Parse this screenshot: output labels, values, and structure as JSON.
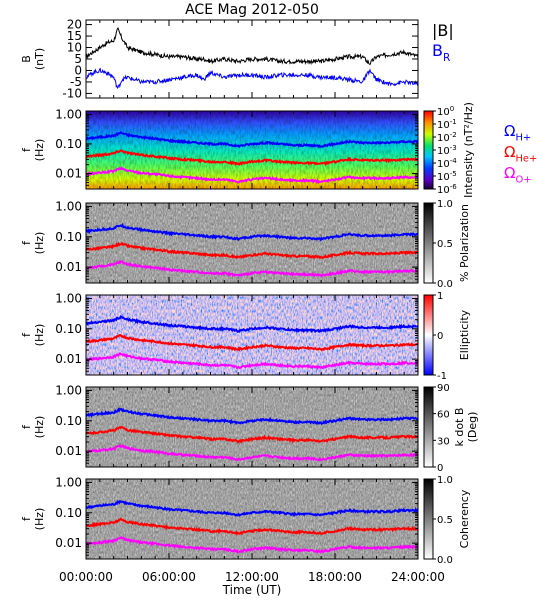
{
  "title": "ACE Mag 2012-050",
  "time_axis": {
    "ticks": [
      "00:00:00",
      "06:00:00",
      "12:00:00",
      "18:00:00",
      "24:00:00"
    ],
    "tick_hours": [
      0,
      6,
      12,
      18,
      24
    ],
    "minor_tick_hours": [
      1,
      2,
      3,
      4,
      5,
      7,
      8,
      9,
      10,
      11,
      13,
      14,
      15,
      16,
      17,
      19,
      20,
      21,
      22,
      23
    ],
    "label": "Time (UT)",
    "range": [
      0,
      24
    ]
  },
  "colors": {
    "b_total": "#000000",
    "b_r": "#0000ff",
    "gyro_h": "#0000ff",
    "gyro_he": "#ff0000",
    "gyro_o": "#ff00ff"
  },
  "panel_b": {
    "ylabel_top": "B",
    "ylabel_bottom": "(nT)",
    "ylim": [
      -12,
      22
    ],
    "ticks": [
      "20",
      "15",
      "10",
      "5",
      "0",
      "-5",
      "-10"
    ],
    "tick_values": [
      20,
      15,
      10,
      5,
      0,
      -5,
      -10
    ],
    "legend_total": "|B|",
    "legend_r_main": "B",
    "legend_r_sub": "R"
  },
  "freq_axis": {
    "ylabel_top": "f",
    "ylabel_bottom": "(Hz)",
    "log_range": [
      0.003,
      1.3
    ],
    "ticks": [
      "1.00",
      "0.10",
      "0.01"
    ],
    "tick_values": [
      1.0,
      0.1,
      0.01
    ]
  },
  "gyro_legend": {
    "h_main": "Ω",
    "h_sub": "H+",
    "he_main": "Ω",
    "he_sub": "He+",
    "o_main": "Ω",
    "o_sub": "O+"
  },
  "panels": [
    {
      "id": "intensity",
      "colormap": "rainbow",
      "colorbar_label": "Intensity (nT²/Hz)",
      "colorbar_ticks": [
        {
          "base": "10",
          "exp": "0"
        },
        {
          "base": "10",
          "exp": "-1"
        },
        {
          "base": "10",
          "exp": "-2"
        },
        {
          "base": "10",
          "exp": "-3"
        },
        {
          "base": "10",
          "exp": "-4"
        },
        {
          "base": "10",
          "exp": "-5"
        },
        {
          "base": "10",
          "exp": "-6"
        }
      ]
    },
    {
      "id": "polarization",
      "colormap": "gray",
      "colorbar_label": "% Polarization",
      "colorbar_ticks": [
        {
          "base": "1.0"
        },
        {
          "base": "0.5"
        },
        {
          "base": "0.0"
        }
      ]
    },
    {
      "id": "ellipticity",
      "colormap": "bwr",
      "colorbar_label": "Ellipticity",
      "colorbar_ticks": [
        {
          "base": "1"
        },
        {
          "base": "0"
        },
        {
          "base": "-1"
        }
      ]
    },
    {
      "id": "kdotb",
      "colormap": "gray",
      "colorbar_label_line1": "k dot B",
      "colorbar_label_line2": "(Deg)",
      "colorbar_ticks": [
        {
          "base": "90"
        },
        {
          "base": "60"
        },
        {
          "base": "30"
        },
        {
          "base": "0"
        }
      ]
    },
    {
      "id": "coherency",
      "colormap": "gray",
      "colorbar_label": "Coherency",
      "colorbar_ticks": [
        {
          "base": "1.0"
        },
        {
          "base": "0.5"
        },
        {
          "base": "0.0"
        }
      ]
    }
  ],
  "chart_data": [
    {
      "type": "line",
      "title": "ACE Mag 2012-050",
      "xlabel": "Time (UT)",
      "ylabel": "B (nT)",
      "xlim": [
        0,
        24
      ],
      "ylim": [
        -12,
        22
      ],
      "x": [
        0,
        0.5,
        1,
        1.5,
        2,
        2.3,
        2.6,
        3,
        3.5,
        4,
        5,
        6,
        7,
        8,
        8.5,
        9,
        10,
        11,
        12,
        13,
        14,
        15,
        16,
        17,
        18,
        19,
        20,
        20.5,
        21,
        22,
        23,
        24
      ],
      "series": [
        {
          "name": "|B|",
          "values": [
            6,
            8,
            10,
            12,
            13,
            18,
            14,
            10,
            9,
            8,
            7,
            6,
            6,
            5,
            5,
            4,
            5,
            4,
            5,
            5,
            4,
            4,
            4,
            4,
            5,
            6,
            6,
            3,
            6,
            7,
            8,
            6
          ]
        },
        {
          "name": "BR",
          "values": [
            -3,
            -1,
            0,
            -1,
            -3,
            -8,
            -4,
            -3,
            -4,
            -5,
            -5,
            -4,
            -3,
            -2,
            -4,
            -1,
            -3,
            -2,
            -2,
            -3,
            -2,
            -2,
            -2,
            -3,
            -3,
            -4,
            -5,
            0,
            -4,
            -6,
            -5,
            -6
          ]
        }
      ]
    },
    {
      "type": "line",
      "ylabel": "f (Hz)",
      "xlim": [
        0,
        24
      ],
      "ylim": [
        0.003,
        1.3
      ],
      "log_y": true,
      "x": [
        0,
        1,
        2,
        2.5,
        3,
        4,
        5,
        6,
        7,
        8,
        9,
        10,
        11,
        12,
        13,
        14,
        15,
        16,
        17,
        18,
        19,
        20,
        21,
        22,
        23,
        24
      ],
      "series": [
        {
          "name": "ΩH+",
          "values": [
            0.15,
            0.17,
            0.19,
            0.24,
            0.2,
            0.17,
            0.15,
            0.13,
            0.12,
            0.11,
            0.1,
            0.1,
            0.085,
            0.1,
            0.11,
            0.1,
            0.09,
            0.09,
            0.085,
            0.1,
            0.12,
            0.11,
            0.11,
            0.11,
            0.12,
            0.12
          ]
        },
        {
          "name": "ΩHe+",
          "values": [
            0.038,
            0.042,
            0.048,
            0.06,
            0.05,
            0.042,
            0.038,
            0.033,
            0.03,
            0.028,
            0.025,
            0.025,
            0.021,
            0.025,
            0.028,
            0.025,
            0.023,
            0.023,
            0.021,
            0.025,
            0.03,
            0.028,
            0.028,
            0.028,
            0.03,
            0.03
          ]
        },
        {
          "name": "ΩO+",
          "values": [
            0.0095,
            0.0105,
            0.012,
            0.015,
            0.0125,
            0.0105,
            0.0095,
            0.0083,
            0.0075,
            0.007,
            0.0063,
            0.0063,
            0.0053,
            0.0063,
            0.007,
            0.0063,
            0.0058,
            0.0058,
            0.0053,
            0.0063,
            0.0075,
            0.007,
            0.007,
            0.007,
            0.0075,
            0.0075
          ]
        }
      ]
    }
  ]
}
